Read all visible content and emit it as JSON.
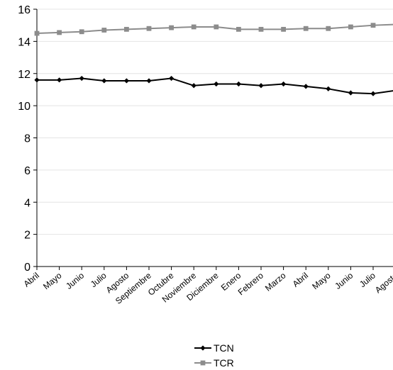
{
  "chart_data": {
    "type": "line",
    "title": "",
    "xlabel": "",
    "ylabel": "",
    "ylim": [
      0,
      16
    ],
    "yticks": [
      0,
      2,
      4,
      6,
      8,
      10,
      12,
      14,
      16
    ],
    "grid": true,
    "legend_position": "bottom",
    "categories": [
      "Abril",
      "Mayo",
      "Junio",
      "Julio",
      "Agosto",
      "Septiembre",
      "Octubre",
      "Noviembre",
      "Diciembre",
      "Enero",
      "Febrero",
      "Marzo",
      "Abril",
      "Mayo",
      "Junio",
      "Julio",
      "Agosto"
    ],
    "series": [
      {
        "name": "TCN",
        "color": "#000000",
        "marker": "diamond",
        "values": [
          11.6,
          11.6,
          11.7,
          11.55,
          11.55,
          11.55,
          11.7,
          11.25,
          11.35,
          11.35,
          11.25,
          11.35,
          11.2,
          11.05,
          10.8,
          10.75,
          10.95
        ]
      },
      {
        "name": "TCR",
        "color": "#8c8c8c",
        "marker": "square",
        "values": [
          14.5,
          14.55,
          14.6,
          14.7,
          14.75,
          14.8,
          14.85,
          14.9,
          14.9,
          14.75,
          14.75,
          14.75,
          14.8,
          14.8,
          14.9,
          15.0,
          15.05
        ]
      }
    ]
  }
}
